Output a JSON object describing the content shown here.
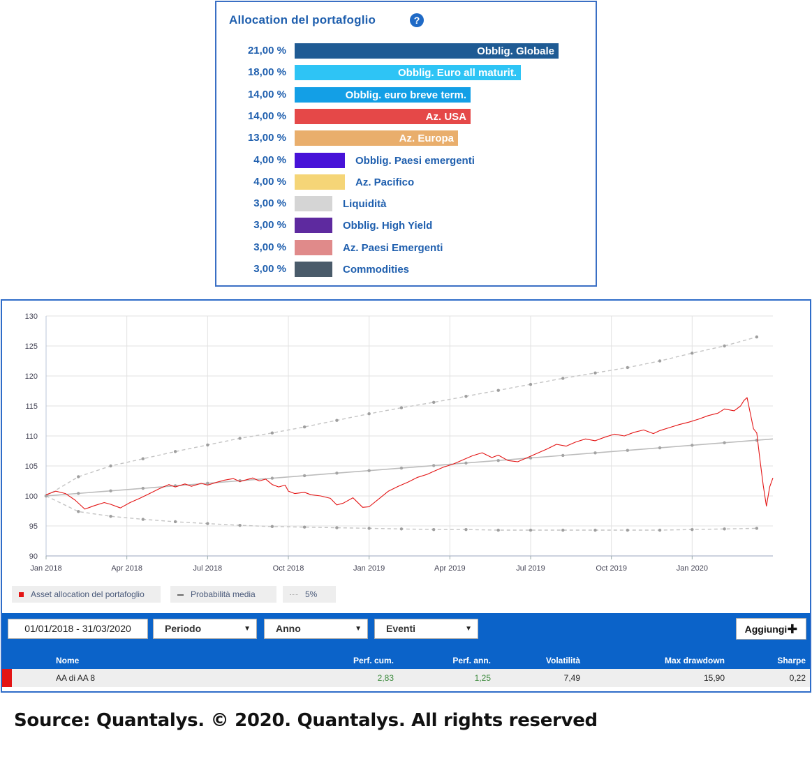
{
  "allocation": {
    "title": "Allocation del portafoglio",
    "help_icon": "question-circle-icon",
    "items": [
      {
        "pct": "21,00 %",
        "value": 21,
        "label": "Obblig. Globale",
        "color": "#1f5b94",
        "inside": true
      },
      {
        "pct": "18,00 %",
        "value": 18,
        "label": "Obblig. Euro all maturit.",
        "color": "#2ec4f5",
        "inside": true
      },
      {
        "pct": "14,00 %",
        "value": 14,
        "label": "Obblig. euro breve term.",
        "color": "#139fe6",
        "inside": true
      },
      {
        "pct": "14,00 %",
        "value": 14,
        "label": "Az. USA",
        "color": "#e54848",
        "inside": true
      },
      {
        "pct": "13,00 %",
        "value": 13,
        "label": "Az. Europa",
        "color": "#e9ae6c",
        "inside": true
      },
      {
        "pct": "4,00 %",
        "value": 4,
        "label": "Obblig. Paesi emergenti",
        "color": "#4712d8",
        "inside": false
      },
      {
        "pct": "4,00 %",
        "value": 4,
        "label": "Az. Pacifico",
        "color": "#f5d577",
        "inside": false
      },
      {
        "pct": "3,00 %",
        "value": 3,
        "label": "Liquidità",
        "color": "#d5d5d5",
        "inside": false
      },
      {
        "pct": "3,00 %",
        "value": 3,
        "label": "Obblig. High Yield",
        "color": "#5e2a9f",
        "inside": false
      },
      {
        "pct": "3,00 %",
        "value": 3,
        "label": "Az. Paesi Emergenti",
        "color": "#e08a8a",
        "inside": false
      },
      {
        "pct": "3,00 %",
        "value": 3,
        "label": "Commodities",
        "color": "#4a5b6a",
        "inside": false
      }
    ]
  },
  "chart_data": {
    "type": "line",
    "ylim": [
      90,
      130
    ],
    "y_ticks": [
      "130",
      "125",
      "120",
      "115",
      "110",
      "105",
      "100",
      "95",
      "90"
    ],
    "x_ticks": [
      "Jan 2018",
      "Apr 2018",
      "Jul 2018",
      "Oct 2018",
      "Jan 2019",
      "Apr 2019",
      "Jul 2019",
      "Oct 2019",
      "Jan 2020"
    ],
    "grid": true,
    "series": [
      {
        "name": "Asset allocation del portafoglio",
        "color": "#e31414",
        "x": [
          0.0,
          0.03,
          0.06,
          0.09,
          0.12,
          0.15,
          0.18,
          0.2,
          0.23,
          0.26,
          0.29,
          0.32,
          0.35,
          0.38,
          0.4,
          0.43,
          0.45,
          0.48,
          0.5,
          0.53,
          0.55,
          0.58,
          0.6,
          0.62,
          0.64,
          0.66,
          0.68,
          0.7,
          0.72,
          0.74,
          0.75,
          0.77,
          0.8,
          0.82,
          0.85,
          0.88,
          0.9,
          0.92,
          0.95,
          0.98,
          1.0,
          1.03,
          1.06,
          1.09,
          1.12,
          1.15,
          1.18,
          1.2,
          1.23,
          1.26,
          1.29,
          1.32,
          1.35,
          1.38,
          1.4,
          1.43,
          1.46,
          1.49,
          1.52,
          1.55,
          1.58,
          1.61,
          1.64,
          1.67,
          1.7,
          1.73,
          1.76,
          1.79,
          1.82,
          1.85,
          1.88,
          1.9,
          1.93,
          1.96,
          1.99,
          2.02,
          2.05,
          2.08,
          2.1,
          2.13,
          2.15,
          2.16,
          2.17,
          2.18,
          2.19,
          2.2,
          2.21,
          2.22,
          2.23,
          2.24,
          2.25
        ],
        "y": [
          100.2,
          100.8,
          100.4,
          99.3,
          97.8,
          98.4,
          98.9,
          98.6,
          98.0,
          98.9,
          99.6,
          100.4,
          101.2,
          101.9,
          101.5,
          102.0,
          101.6,
          102.1,
          101.8,
          102.3,
          102.6,
          102.9,
          102.4,
          102.7,
          103.0,
          102.5,
          102.8,
          101.9,
          101.5,
          101.8,
          100.8,
          100.4,
          100.6,
          100.2,
          100.0,
          99.6,
          98.5,
          98.8,
          99.7,
          98.1,
          98.2,
          99.5,
          100.8,
          101.6,
          102.3,
          103.1,
          103.6,
          104.1,
          104.8,
          105.3,
          106.0,
          106.7,
          107.2,
          106.4,
          106.8,
          105.9,
          105.7,
          106.4,
          107.1,
          107.8,
          108.6,
          108.3,
          109.0,
          109.5,
          109.2,
          109.8,
          110.3,
          110.0,
          110.6,
          111.0,
          110.4,
          110.9,
          111.4,
          111.9,
          112.3,
          112.8,
          113.4,
          113.8,
          114.5,
          114.2,
          115.0,
          115.9,
          116.4,
          113.8,
          111.2,
          110.5,
          106.0,
          101.8,
          98.3,
          101.5,
          103.0
        ]
      },
      {
        "name": "Probabilità media",
        "color": "#bcbcbc",
        "x": [
          0.0,
          2.25
        ],
        "y": [
          100,
          109.5
        ]
      },
      {
        "name": "5%",
        "color": "#c4c4c4",
        "x": [
          0.0,
          0.1,
          0.2,
          0.3,
          0.4,
          0.5,
          0.6,
          0.7,
          0.8,
          0.9,
          1.0,
          1.1,
          1.2,
          1.3,
          1.4,
          1.5,
          1.6,
          1.7,
          1.8,
          1.9,
          2.0,
          2.1,
          2.2
        ],
        "y": [
          100,
          103.2,
          105.0,
          106.2,
          107.4,
          108.5,
          109.6,
          110.5,
          111.5,
          112.6,
          113.7,
          114.7,
          115.6,
          116.6,
          117.6,
          118.6,
          119.6,
          120.5,
          121.4,
          122.5,
          123.8,
          125.0,
          126.5
        ],
        "y_low": [
          100,
          97.4,
          96.6,
          96.1,
          95.7,
          95.4,
          95.1,
          94.9,
          94.8,
          94.7,
          94.6,
          94.5,
          94.4,
          94.4,
          94.3,
          94.3,
          94.3,
          94.3,
          94.3,
          94.3,
          94.4,
          94.5,
          94.6
        ]
      }
    ]
  },
  "legend": [
    {
      "label": "Asset allocation del portafoglio",
      "color": "#e31414",
      "marker": "square"
    },
    {
      "label": "Probabilità media",
      "color": "#6a6a6a",
      "marker": "dash"
    },
    {
      "label": "5%",
      "color": "#aaaaaa",
      "marker": "dots"
    }
  ],
  "toolbar": {
    "date_range": "01/01/2018 - 31/03/2020",
    "periodo": "Periodo",
    "anno": "Anno",
    "eventi": "Eventi",
    "add_label": "Aggiungi",
    "add_icon": "plus-icon"
  },
  "table": {
    "headers": {
      "nome": "Nome",
      "perf_cum": "Perf. cum.",
      "perf_ann": "Perf. ann.",
      "volatilita": "Volatilità",
      "max_dd": "Max drawdown",
      "sharpe": "Sharpe"
    },
    "rows": [
      {
        "nome": "AA di AA 8",
        "perf_cum": "2,83",
        "perf_ann": "1,25",
        "volatilita": "7,49",
        "max_dd": "15,90",
        "sharpe": "0,22",
        "color": "#e31414"
      }
    ]
  },
  "source": "Source: Quantalys. © 2020. Quantalys. All rights reserved"
}
